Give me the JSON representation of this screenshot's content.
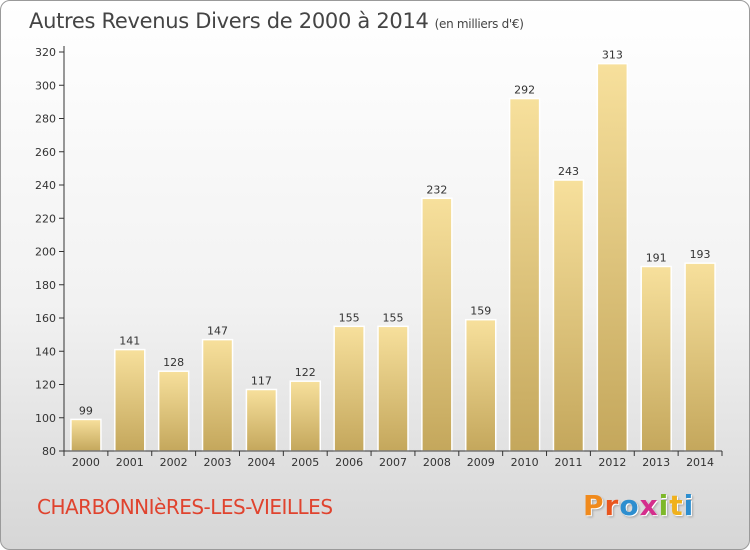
{
  "header": {
    "title": "Autres Revenus Divers de 2000 à 2014",
    "unit": "(en milliers d'€)"
  },
  "footer": {
    "city": "CHARBONNIèRES-LES-VIEILLES",
    "logo_letters": [
      "P",
      "r",
      "o",
      "x",
      "i",
      "t",
      "i"
    ],
    "logo_colors": [
      "#f08a1c",
      "#e8561f",
      "#2d8ecf",
      "#d42e8c",
      "#7db829",
      "#f0b11c",
      "#2d8ecf"
    ]
  },
  "colors": {
    "bar_top": "#f7e09c",
    "bar_bottom": "#c4a75c",
    "axis": "#333333",
    "grid": "#dcdcdc"
  },
  "chart_data": {
    "type": "bar",
    "categories": [
      "2000",
      "2001",
      "2002",
      "2003",
      "2004",
      "2005",
      "2006",
      "2007",
      "2008",
      "2009",
      "2010",
      "2011",
      "2012",
      "2013",
      "2014"
    ],
    "values": [
      99,
      141,
      128,
      147,
      117,
      122,
      155,
      155,
      232,
      159,
      292,
      243,
      313,
      191,
      193
    ],
    "yticks": [
      80,
      100,
      120,
      140,
      160,
      180,
      200,
      220,
      240,
      260,
      280,
      300,
      320
    ],
    "ylim": [
      80,
      320
    ],
    "grid": false
  }
}
